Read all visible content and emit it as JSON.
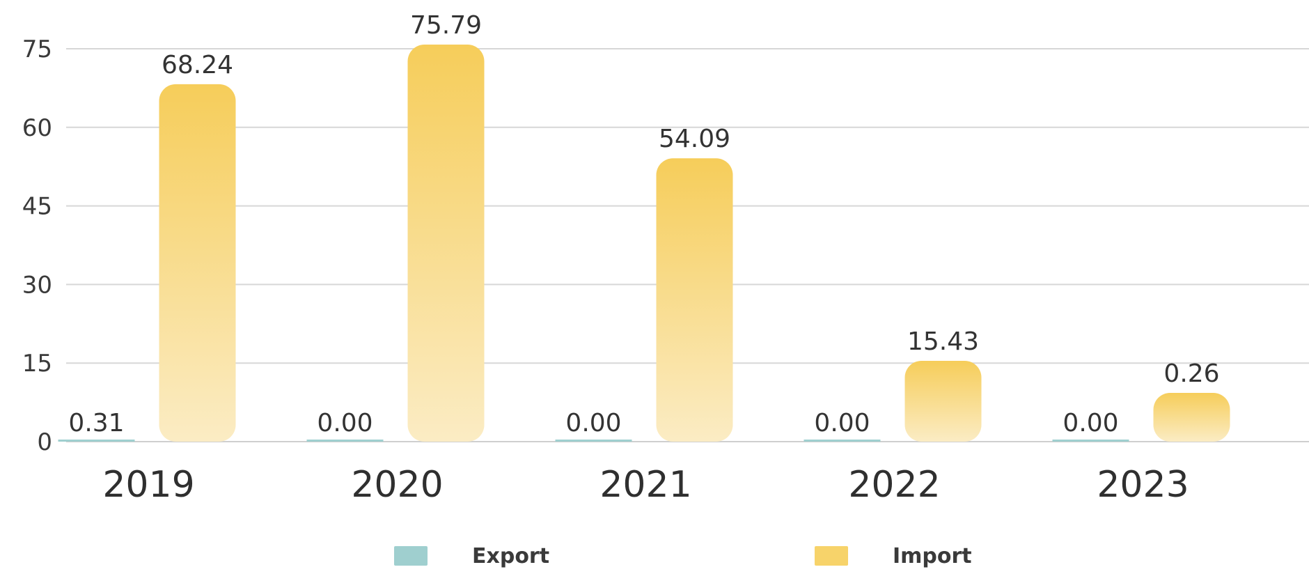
{
  "chart_data": {
    "type": "bar",
    "categories": [
      "2019",
      "2020",
      "2021",
      "2022",
      "2023"
    ],
    "series": [
      {
        "name": "Export",
        "values": [
          0.31,
          0.0,
          0.0,
          0.0,
          0.0
        ],
        "labels": [
          "0.31",
          "0.00",
          "0.00",
          "0.00",
          "0.00"
        ],
        "color": "#9fcfcf"
      },
      {
        "name": "Import",
        "values": [
          68.24,
          75.79,
          54.09,
          15.43,
          0.26
        ],
        "labels": [
          "68.24",
          "75.79",
          "54.09",
          "15.43",
          "0.26"
        ],
        "color": "#f6cd5a"
      }
    ],
    "yticks": [
      "0",
      "15",
      "30",
      "45",
      "60",
      "75"
    ],
    "ylim": [
      0,
      75
    ],
    "grid": true,
    "legend_position": "bottom"
  },
  "legend": {
    "export_label": "Export",
    "import_label": "Import"
  }
}
